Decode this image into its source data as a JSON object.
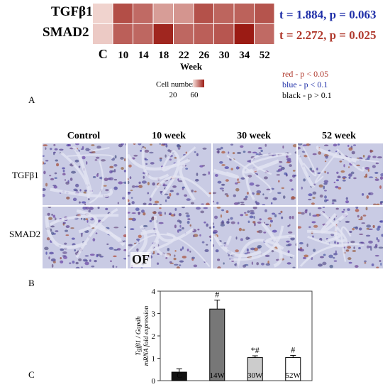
{
  "colors": {
    "sig_red": "#b03a2e",
    "trend_blue": "#1f2fa8",
    "nonsig_black": "#000000",
    "heat_low": "#f7e1dc",
    "heat_high": "#9b1b14",
    "bar_c": "#111111",
    "bar_14w": "#777777",
    "bar_30w": "#cccccc",
    "bar_52w": "#ffffff",
    "stain_bg": "#c9cbe4"
  },
  "heatmap": {
    "categories": [
      "C",
      "10",
      "14",
      "18",
      "22",
      "26",
      "30",
      "34",
      "52"
    ],
    "xlabel": "Week",
    "legend_title": "Cell number",
    "legend_ticks": [
      "20",
      "60"
    ],
    "legend_range": [
      0,
      70
    ],
    "rows": [
      {
        "label": "TGFβ1",
        "values": [
          5,
          52,
          42,
          24,
          27,
          51,
          44,
          45,
          50
        ],
        "stat": "t = 1.884, p = 0.063",
        "stat_color": "trend_blue"
      },
      {
        "label": "SMAD2",
        "values": [
          8,
          46,
          43,
          66,
          43,
          46,
          49,
          70,
          42
        ],
        "stat": "t = 2.272, p = 0.025",
        "stat_color": "sig_red"
      }
    ]
  },
  "significance_legend": [
    {
      "text": "red - p < 0.05",
      "color": "sig_red"
    },
    {
      "text": "blue - p < 0.1",
      "color": "trend_blue"
    },
    {
      "text": "black - p > 0.1",
      "color": "nonsig_black"
    }
  ],
  "micrographs": {
    "columns": [
      "Control",
      "10 week",
      "30 week",
      "52 week"
    ],
    "rows": [
      "TGFβ1",
      "SMAD2"
    ],
    "inset_label": "OF"
  },
  "panel_labels": {
    "a": "A",
    "b": "B",
    "c": "C"
  },
  "chart_data": {
    "type": "bar",
    "categories": [
      "C",
      "14W",
      "30W",
      "52W"
    ],
    "values": [
      0.38,
      3.2,
      1.03,
      1.03
    ],
    "errors": [
      0.15,
      0.4,
      0.08,
      0.1
    ],
    "annotations": [
      "",
      "#",
      "*#",
      "#"
    ],
    "ylabel_line1": "Tgfβ1 / Gapdh",
    "ylabel_line2": "mRNA fold expression",
    "ylim": [
      0,
      4
    ],
    "yticks": [
      "0",
      "1",
      "2",
      "3",
      "4"
    ]
  }
}
